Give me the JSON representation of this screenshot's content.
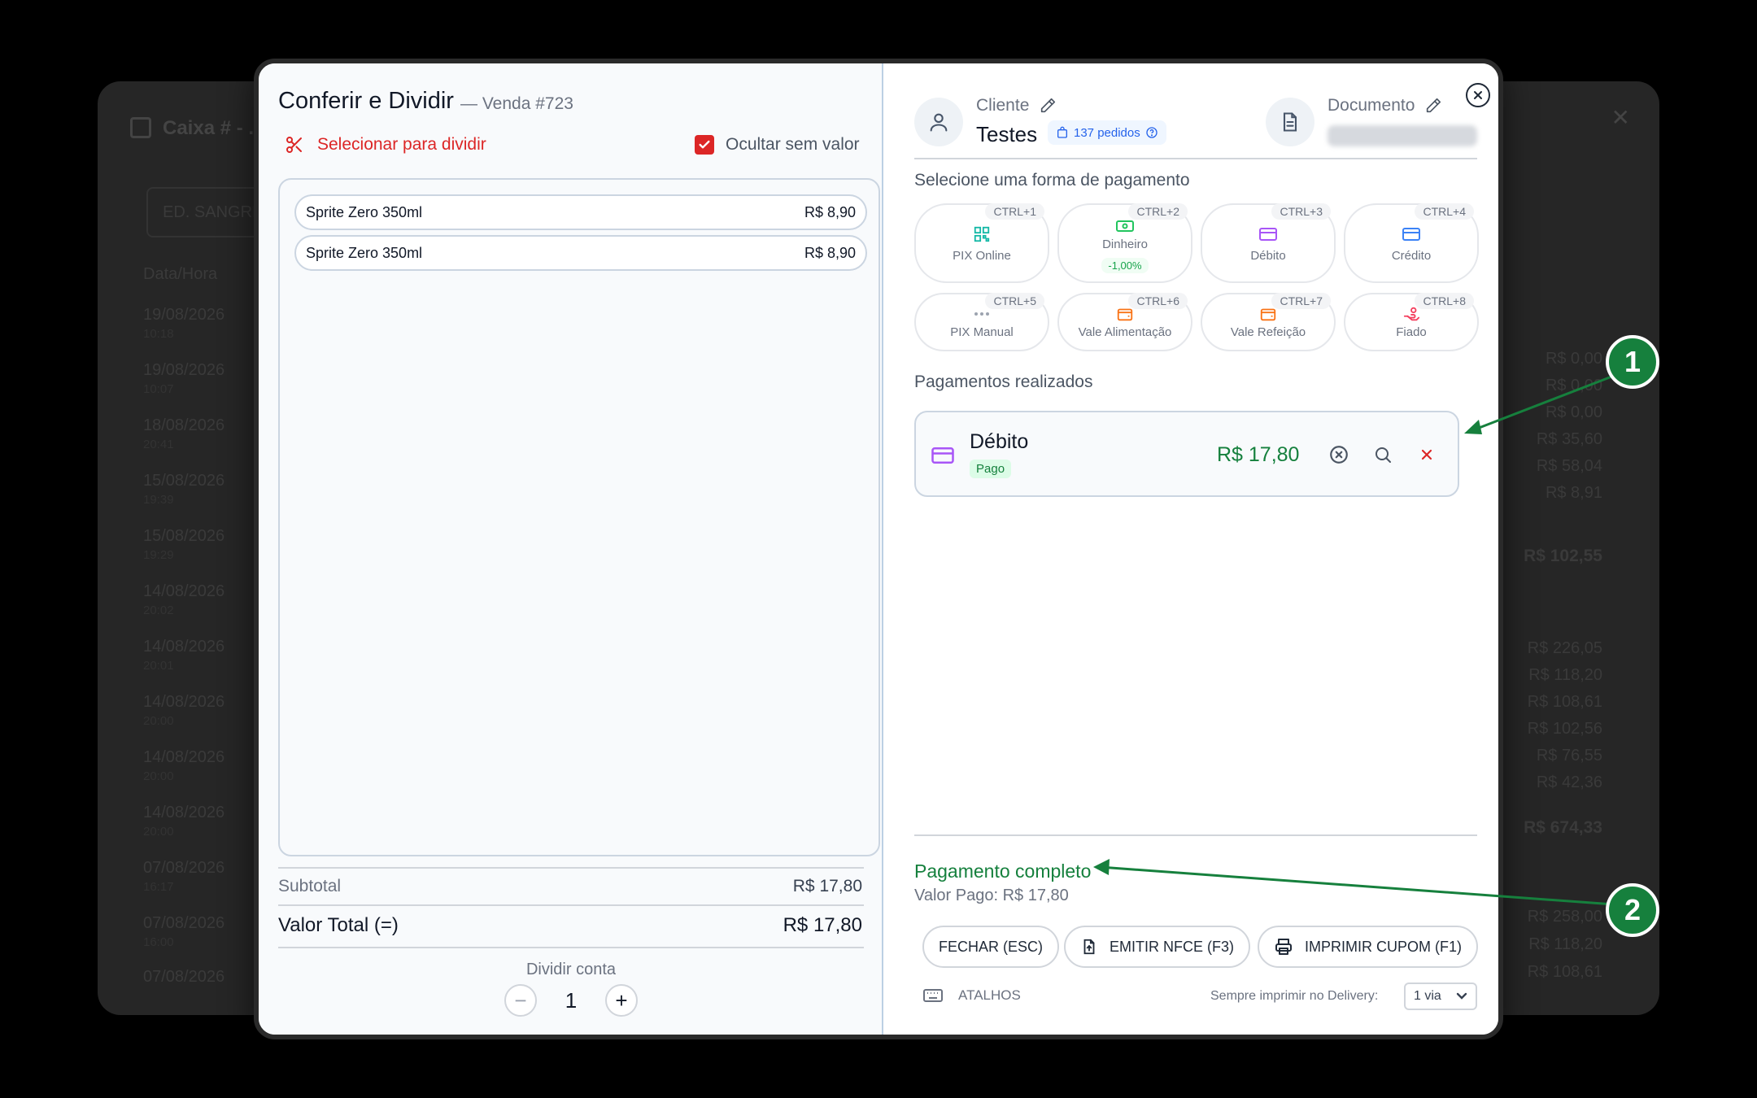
{
  "background": {
    "title": "Caixa # - ...",
    "search_value": "ED. SANGRIO",
    "column_header": "Data/Hora",
    "rows": [
      {
        "date": "19/08/2026",
        "time": "10:18"
      },
      {
        "date": "19/08/2026",
        "time": "10:07"
      },
      {
        "date": "18/08/2026",
        "time": "20:41"
      },
      {
        "date": "15/08/2026",
        "time": "19:39"
      },
      {
        "date": "15/08/2026",
        "time": "19:29"
      },
      {
        "date": "14/08/2026",
        "time": "20:02"
      },
      {
        "date": "14/08/2026",
        "time": "20:01"
      },
      {
        "date": "14/08/2026",
        "time": "20:00"
      },
      {
        "date": "14/08/2026",
        "time": "20:00"
      },
      {
        "date": "14/08/2026",
        "time": "20:00"
      },
      {
        "date": "07/08/2026",
        "time": "16:17"
      },
      {
        "date": "07/08/2026",
        "time": "16:00"
      },
      {
        "date": "07/08/2026",
        "time": ""
      }
    ],
    "values_top": [
      "R$ 0,00",
      "R$ 0,00",
      "R$ 0,00",
      "R$ 35,60",
      "R$ 58,04",
      "R$ 8,91"
    ],
    "total_top": "R$ 102,55",
    "values_mid": [
      "R$ 226,05",
      "R$ 118,20",
      "R$ 108,61",
      "R$ 102,56",
      "R$ 76,55",
      "R$ 42,36"
    ],
    "total_mid": "R$ 674,33",
    "values_bottom": [
      "R$ 258,00",
      "R$ 118,20",
      "R$ 108,61"
    ]
  },
  "left": {
    "title": "Conferir e Dividir",
    "subtitle": "— Venda #723",
    "split_label": "Selecionar para dividir",
    "hide_label": "Ocultar sem valor",
    "items": [
      {
        "name": "Sprite Zero 350ml",
        "price": "R$ 8,90"
      },
      {
        "name": "Sprite Zero 350ml",
        "price": "R$ 8,90"
      }
    ],
    "subtotal_label": "Subtotal",
    "subtotal_value": "R$ 17,80",
    "total_label": "Valor Total (=)",
    "total_value": "R$ 17,80",
    "split_account_label": "Dividir conta",
    "split_count": "1",
    "minus": "−",
    "plus": "+"
  },
  "right": {
    "customer_label": "Cliente",
    "customer_name": "Testes",
    "orders_badge": "137 pedidos",
    "document_label": "Documento",
    "select_payment_label": "Selecione uma forma de pagamento",
    "payment_methods": [
      {
        "label": "PIX Online",
        "shortcut": "CTRL+1",
        "icon": "qr-code-icon",
        "color": "#14b8a6"
      },
      {
        "label": "Dinheiro",
        "shortcut": "CTRL+2",
        "icon": "cash-icon",
        "color": "#22c55e",
        "discount": "-1,00%"
      },
      {
        "label": "Débito",
        "shortcut": "CTRL+3",
        "icon": "card-icon",
        "color": "#a855f7"
      },
      {
        "label": "Crédito",
        "shortcut": "CTRL+4",
        "icon": "card-icon",
        "color": "#3b82f6"
      },
      {
        "label": "PIX Manual",
        "shortcut": "CTRL+5",
        "icon": "dots-icon",
        "color": "#9ca3af"
      },
      {
        "label": "Vale Alimentação",
        "shortcut": "CTRL+6",
        "icon": "wallet-icon",
        "color": "#f97316"
      },
      {
        "label": "Vale Refeição",
        "shortcut": "CTRL+7",
        "icon": "wallet-icon",
        "color": "#f97316"
      },
      {
        "label": "Fiado",
        "shortcut": "CTRL+8",
        "icon": "hand-coins-icon",
        "color": "#f43f5e"
      }
    ],
    "payments_done_label": "Pagamentos realizados",
    "payment": {
      "name": "Débito",
      "status": "Pago",
      "amount": "R$ 17,80"
    },
    "complete_label": "Pagamento completo",
    "paid_label": "Valor Pago: R$ 17,80",
    "close_button": "FECHAR (ESC)",
    "nfce_button": "EMITIR NFCE (F3)",
    "print_button": "IMPRIMIR CUPOM (F1)",
    "shortcuts_label": "ATALHOS",
    "always_print_label": "Sempre imprimir no Delivery:",
    "via_value": "1 via"
  },
  "callouts": [
    "1",
    "2"
  ],
  "colors": {
    "accent_red": "#dc2626",
    "success_green": "#15803d",
    "callout_green": "#16803d"
  }
}
